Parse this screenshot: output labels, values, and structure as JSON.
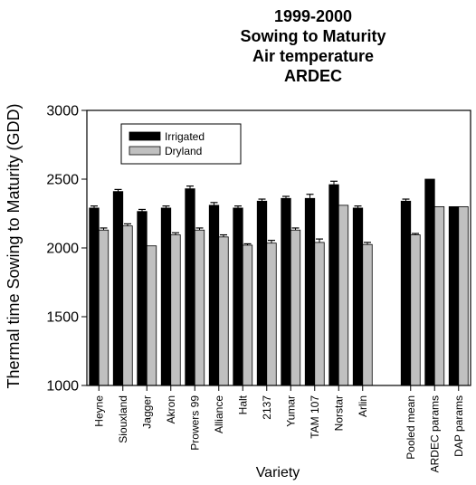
{
  "chart_data": {
    "type": "bar",
    "title_lines": [
      "1999-2000",
      "Sowing to Maturity",
      "Air temperature",
      "ARDEC"
    ],
    "xlabel": "Variety",
    "ylabel": "Thermal time Sowing to Maturity (GDD)",
    "ylim": [
      1000,
      3000
    ],
    "yticks": [
      1000,
      1500,
      2000,
      2500,
      3000
    ],
    "grid": false,
    "legend_position": "top-left",
    "categories": [
      "Heyne",
      "Siouxland",
      "Jagger",
      "Akron",
      "Prowers 99",
      "Alliance",
      "Halt",
      "2137",
      "Yumar",
      "TAM 107",
      "Norstar",
      "Arlin",
      "",
      "Pooled mean",
      "ARDEC params",
      "DAP params"
    ],
    "series": [
      {
        "name": "Irrigated",
        "color": "#000000",
        "values": [
          2290,
          2410,
          2265,
          2290,
          2430,
          2310,
          2290,
          2340,
          2360,
          2360,
          2460,
          2290,
          null,
          2340,
          2500,
          2300
        ],
        "errors": [
          15,
          15,
          15,
          15,
          20,
          20,
          15,
          15,
          15,
          30,
          25,
          15,
          null,
          15,
          0,
          0
        ]
      },
      {
        "name": "Dryland",
        "color": "#c0c0c0",
        "values": [
          2130,
          2160,
          2015,
          2095,
          2130,
          2080,
          2020,
          2035,
          2130,
          2040,
          2310,
          2025,
          null,
          2095,
          2300,
          2300
        ],
        "errors": [
          15,
          15,
          0,
          15,
          15,
          15,
          10,
          20,
          15,
          25,
          0,
          15,
          null,
          10,
          0,
          0
        ]
      }
    ]
  }
}
